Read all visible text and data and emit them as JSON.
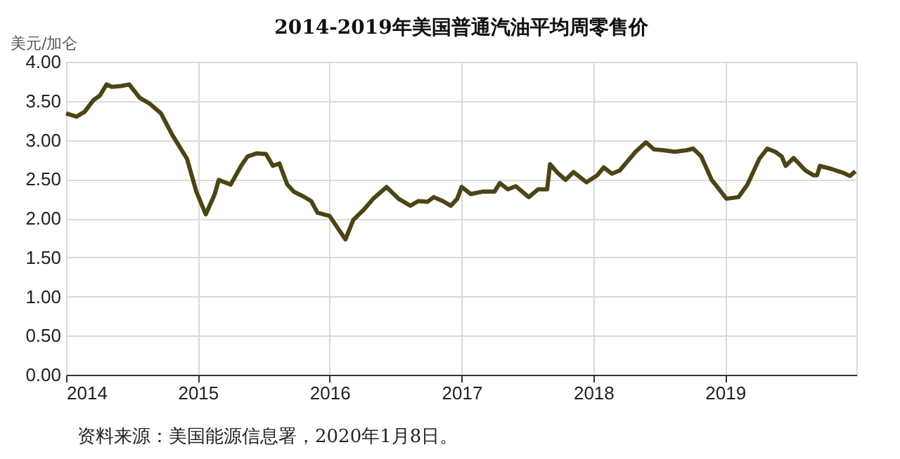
{
  "chart_data": {
    "type": "line",
    "title": "2014-2019年美国普通汽油平均周零售价",
    "ylabel": "美元/加仑",
    "annotations": [
      "资料来源：美国能源信息署，2020年1月8日。"
    ],
    "x": [
      "2014-01-01",
      "2014-01-30",
      "2014-02-21",
      "2014-03-18",
      "2014-04-05",
      "2014-04-23",
      "2014-05-08",
      "2014-06-03",
      "2014-06-25",
      "2014-07-24",
      "2014-08-19",
      "2014-09-21",
      "2014-10-23",
      "2014-12-02",
      "2014-12-28",
      "2015-01-23",
      "2015-02-17",
      "2015-02-28",
      "2015-04-02",
      "2015-05-01",
      "2015-05-19",
      "2015-06-14",
      "2015-07-09",
      "2015-07-28",
      "2015-08-15",
      "2015-09-06",
      "2015-09-24",
      "2015-10-20",
      "2015-11-11",
      "2015-11-29",
      "2016-01-01",
      "2016-01-26",
      "2016-02-14",
      "2016-03-07",
      "2016-04-05",
      "2016-05-01",
      "2016-06-07",
      "2016-07-10",
      "2016-08-12",
      "2016-09-03",
      "2016-09-28",
      "2016-10-16",
      "2016-11-10",
      "2016-12-02",
      "2016-12-20",
      "2017-01-01",
      "2017-01-26",
      "2017-02-28",
      "2017-04-02",
      "2017-04-17",
      "2017-05-09",
      "2017-05-31",
      "2017-07-06",
      "2017-08-01",
      "2017-08-26",
      "2017-09-03",
      "2017-09-24",
      "2017-10-16",
      "2017-11-07",
      "2017-12-13",
      "2018-01-12",
      "2018-01-30",
      "2018-02-21",
      "2018-03-15",
      "2018-04-06",
      "2018-04-28",
      "2018-05-27",
      "2018-06-18",
      "2018-07-13",
      "2018-08-15",
      "2018-09-17",
      "2018-10-05",
      "2018-10-27",
      "2018-11-25",
      "2019-01-05",
      "2019-02-07",
      "2019-03-04",
      "2019-04-06",
      "2019-04-28",
      "2019-05-20",
      "2019-06-07",
      "2019-06-18",
      "2019-07-10",
      "2019-08-12",
      "2019-09-03",
      "2019-09-13",
      "2019-09-21",
      "2019-10-23",
      "2019-11-25",
      "2019-12-13",
      "2019-12-28"
    ],
    "series": [
      {
        "color": "#4d4416",
        "values": [
          3.34,
          3.3,
          3.36,
          3.51,
          3.57,
          3.71,
          3.68,
          3.69,
          3.71,
          3.54,
          3.47,
          3.34,
          3.06,
          2.76,
          2.34,
          2.05,
          2.31,
          2.49,
          2.43,
          2.67,
          2.79,
          2.83,
          2.82,
          2.67,
          2.7,
          2.43,
          2.34,
          2.28,
          2.22,
          2.07,
          2.03,
          1.86,
          1.73,
          1.98,
          2.11,
          2.25,
          2.4,
          2.25,
          2.16,
          2.22,
          2.21,
          2.27,
          2.22,
          2.16,
          2.25,
          2.4,
          2.31,
          2.34,
          2.34,
          2.45,
          2.37,
          2.41,
          2.27,
          2.37,
          2.37,
          2.69,
          2.58,
          2.49,
          2.59,
          2.46,
          2.55,
          2.65,
          2.57,
          2.61,
          2.73,
          2.85,
          2.97,
          2.88,
          2.87,
          2.85,
          2.87,
          2.89,
          2.79,
          2.49,
          2.25,
          2.27,
          2.43,
          2.76,
          2.89,
          2.85,
          2.79,
          2.67,
          2.77,
          2.61,
          2.55,
          2.55,
          2.67,
          2.63,
          2.58,
          2.54,
          2.6
        ]
      }
    ],
    "xlim": [
      "2014-01-01",
      "2019-12-31"
    ],
    "xticks": [
      {
        "value": "2014-01-01",
        "label": "2014"
      },
      {
        "value": "2015-01-01",
        "label": "2015"
      },
      {
        "value": "2016-01-01",
        "label": "2016"
      },
      {
        "value": "2017-01-01",
        "label": "2017"
      },
      {
        "value": "2018-01-01",
        "label": "2018"
      },
      {
        "value": "2019-01-01",
        "label": "2019"
      }
    ],
    "ylim": [
      0,
      4
    ],
    "yticks": [
      {
        "value": 0,
        "label": "0.00"
      },
      {
        "value": 0.5,
        "label": "0.50"
      },
      {
        "value": 1,
        "label": "1.00"
      },
      {
        "value": 1.5,
        "label": "1.50"
      },
      {
        "value": 2,
        "label": "2.00"
      },
      {
        "value": 2.5,
        "label": "2.50"
      },
      {
        "value": 3,
        "label": "3.00"
      },
      {
        "value": 3.5,
        "label": "3.50"
      },
      {
        "value": 4,
        "label": "4.00"
      }
    ],
    "grid": true
  }
}
